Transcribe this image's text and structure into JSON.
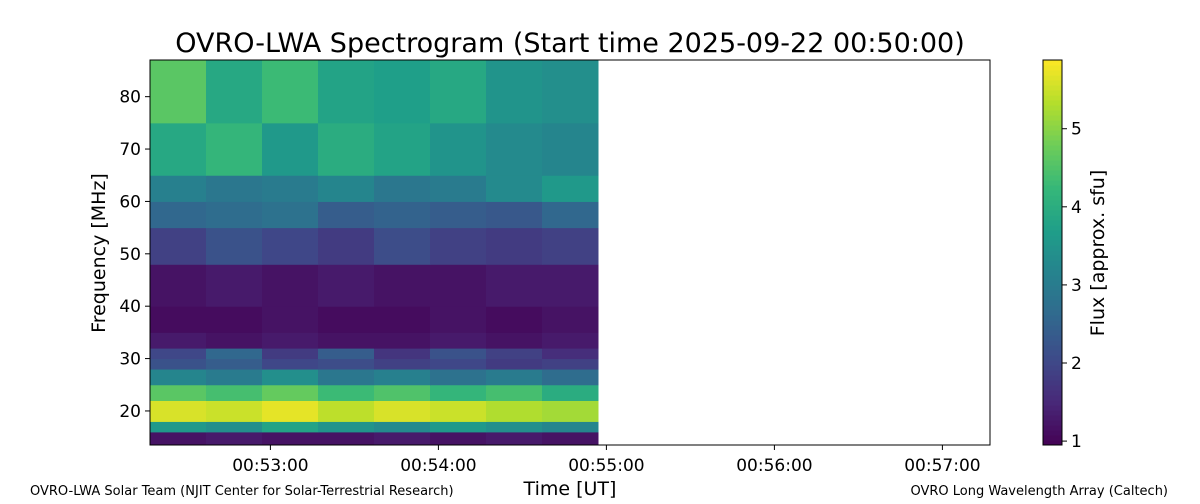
{
  "chart_data": {
    "type": "heatmap",
    "title": "OVRO-LWA Spectrogram (Start time 2025-09-22 00:50:00)",
    "x_label": "Time [UT]",
    "y_label": "Frequency [MHz]",
    "colorbar_label": "Flux [approx. sfu]",
    "footer_left": "OVRO-LWA Solar Team (NJIT Center for Solar-Terrestrial Research)",
    "footer_right": "OVRO Long Wavelength Array (Caltech)",
    "colormap": "viridis",
    "x_bins": [
      "00:52:17",
      "00:52:37",
      "00:52:57",
      "00:53:17",
      "00:53:37",
      "00:53:57",
      "00:54:17",
      "00:54:37",
      "00:54:57"
    ],
    "y_bins": [
      13.5,
      16,
      18,
      22,
      25,
      28,
      30,
      32,
      35,
      40,
      48,
      55,
      60,
      65,
      75,
      87
    ],
    "z": [
      [
        1.2,
        1.3,
        1.2,
        1.2,
        1.3,
        1.2,
        1.3,
        1.2
      ],
      [
        3.6,
        3.4,
        3.8,
        3.5,
        3.3,
        3.6,
        3.4,
        3.2
      ],
      [
        5.6,
        5.5,
        5.7,
        5.4,
        5.6,
        5.5,
        5.3,
        5.2
      ],
      [
        4.6,
        4.4,
        4.7,
        4.3,
        4.5,
        4.2,
        4.4,
        4.0
      ],
      [
        3.2,
        3.0,
        3.4,
        2.9,
        3.1,
        2.8,
        3.0,
        2.7
      ],
      [
        2.2,
        2.4,
        2.0,
        2.1,
        1.9,
        2.0,
        1.8,
        1.9
      ],
      [
        2.0,
        2.6,
        1.8,
        2.4,
        1.7,
        2.2,
        1.9,
        1.6
      ],
      [
        1.3,
        1.2,
        1.3,
        1.2,
        1.2,
        1.3,
        1.2,
        1.3
      ],
      [
        1.1,
        1.1,
        1.2,
        1.1,
        1.1,
        1.2,
        1.1,
        1.2
      ],
      [
        1.2,
        1.3,
        1.2,
        1.3,
        1.2,
        1.2,
        1.3,
        1.3
      ],
      [
        1.9,
        2.2,
        2.0,
        1.8,
        2.1,
        1.9,
        1.8,
        1.9
      ],
      [
        2.6,
        2.7,
        2.8,
        2.4,
        2.5,
        2.4,
        2.3,
        2.6
      ],
      [
        3.1,
        2.9,
        3.0,
        3.2,
        2.9,
        3.0,
        3.3,
        3.6
      ],
      [
        3.9,
        4.2,
        3.6,
        4.0,
        3.8,
        3.5,
        3.3,
        3.2
      ],
      [
        4.6,
        3.9,
        4.3,
        3.8,
        3.7,
        3.9,
        3.5,
        3.4
      ]
    ],
    "xlim": [
      "00:52:17",
      "00:57:17"
    ],
    "xticks": [
      "00:53:00",
      "00:54:00",
      "00:55:00",
      "00:56:00",
      "00:57:00"
    ],
    "ylim": [
      13.5,
      87
    ],
    "yticks": [
      20,
      30,
      40,
      50,
      60,
      70,
      80
    ],
    "clim": [
      0.95,
      5.88
    ],
    "cticks": [
      1,
      2,
      3,
      4,
      5
    ]
  }
}
